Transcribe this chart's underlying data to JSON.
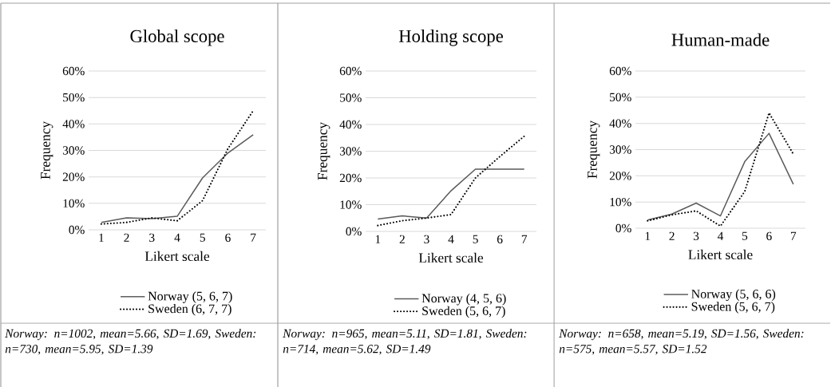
{
  "chart_data": [
    {
      "type": "line",
      "title": "Global scope",
      "xlabel": "Likert scale",
      "ylabel": "Frequency",
      "categories": [
        "1",
        "2",
        "3",
        "4",
        "5",
        "6",
        "7"
      ],
      "series": [
        {
          "name": "Norway (5, 6, 7)",
          "color": "#595959",
          "line_style": "solid",
          "values": [
            2.8,
            4.5,
            4.2,
            5.1,
            19.6,
            29,
            35.9
          ]
        },
        {
          "name": "Sweden (6, 7, 7)",
          "color": "#000000",
          "line_style": "dotted",
          "values": [
            2.2,
            2.8,
            4.5,
            3.4,
            11,
            30.6,
            45
          ]
        }
      ],
      "ylim": [
        0,
        60
      ],
      "yticks": [
        {
          "value": 0,
          "label": "0%"
        },
        {
          "value": 10,
          "label": "10%"
        },
        {
          "value": 20,
          "label": "20%"
        },
        {
          "value": 30,
          "label": "30%"
        },
        {
          "value": 40,
          "label": "40%"
        },
        {
          "value": 50,
          "label": "50%"
        },
        {
          "value": 60,
          "label": "60%"
        }
      ],
      "grid": "y",
      "legend": "bottom",
      "annotations": [
        "Norway: n=1002, mean=5.66, SD=1.69, Sweden: n=730, mean=5.95, SD=1.39"
      ]
    },
    {
      "type": "line",
      "title": "Holding scope",
      "xlabel": "Likert scale",
      "ylabel": "Frequency",
      "categories": [
        "1",
        "2",
        "3",
        "4",
        "5",
        "6",
        "7"
      ],
      "series": [
        {
          "name": "Norway (4, 5, 6)",
          "color": "#595959",
          "line_style": "solid",
          "values": [
            4.6,
            5.8,
            5,
            15.2,
            23.3,
            23.3,
            23.3
          ]
        },
        {
          "name": "Sweden (5, 6, 7)",
          "color": "#000000",
          "line_style": "dotted",
          "values": [
            2.2,
            4,
            5,
            6.3,
            20,
            28,
            35.6
          ]
        }
      ],
      "ylim": [
        0,
        60
      ],
      "yticks": [
        {
          "value": 0,
          "label": "0%"
        },
        {
          "value": 10,
          "label": "10%"
        },
        {
          "value": 20,
          "label": "20%"
        },
        {
          "value": 30,
          "label": "30%"
        },
        {
          "value": 40,
          "label": "40%"
        },
        {
          "value": 50,
          "label": "50%"
        },
        {
          "value": 60,
          "label": "60%"
        }
      ],
      "grid": "y",
      "legend": "bottom",
      "annotations": [
        "Norway: n=965, mean=5.11, SD=1.81, Sweden: n=714, mean=5.62, SD=1.49"
      ]
    },
    {
      "type": "line",
      "title": "Human-made",
      "xlabel": "Likert scale",
      "ylabel": "Frequency",
      "categories": [
        "1",
        "2",
        "3",
        "4",
        "5",
        "6",
        "7"
      ],
      "series": [
        {
          "name": "Norway (5, 6, 6)",
          "color": "#595959",
          "line_style": "solid",
          "values": [
            3.1,
            5.4,
            9.6,
            4.7,
            25.4,
            36.2,
            16.8
          ]
        },
        {
          "name": "Sweden (5, 6, 7)",
          "color": "#000000",
          "line_style": "dotted",
          "values": [
            2.8,
            5.1,
            6.6,
            0.8,
            14,
            44,
            28.3
          ]
        }
      ],
      "ylim": [
        0,
        60
      ],
      "yticks": [
        {
          "value": 0,
          "label": "0%"
        },
        {
          "value": 10,
          "label": "10%"
        },
        {
          "value": 20,
          "label": "20%"
        },
        {
          "value": 30,
          "label": "30%"
        },
        {
          "value": 40,
          "label": "40%"
        },
        {
          "value": 50,
          "label": "50%"
        },
        {
          "value": 60,
          "label": "60%"
        }
      ],
      "grid": "y",
      "legend": "bottom",
      "annotations": [
        "Norway: n=658, mean=5.19, SD=1.56, Sweden: n=575, mean=5.57, SD=1.52"
      ]
    }
  ]
}
